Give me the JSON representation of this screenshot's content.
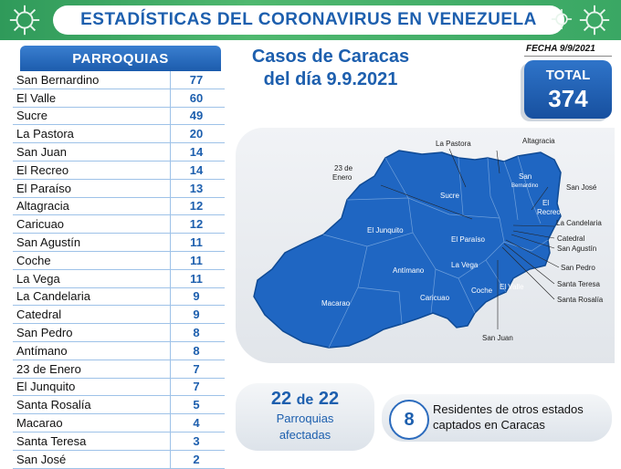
{
  "header": {
    "title": "ESTADÍSTICAS DEL CORONAVIRUS EN VENEZUELA"
  },
  "table": {
    "header": "PARROQUIAS",
    "rows": [
      {
        "name": "San Bernardino",
        "value": "77"
      },
      {
        "name": "El Valle",
        "value": "60"
      },
      {
        "name": "Sucre",
        "value": "49"
      },
      {
        "name": "La Pastora",
        "value": "20"
      },
      {
        "name": "San Juan",
        "value": "14"
      },
      {
        "name": "El Recreo",
        "value": "14"
      },
      {
        "name": "El Paraíso",
        "value": "13"
      },
      {
        "name": "Altagracia",
        "value": "12"
      },
      {
        "name": "Caricuao",
        "value": "12"
      },
      {
        "name": "San Agustín",
        "value": "11"
      },
      {
        "name": "Coche",
        "value": "11"
      },
      {
        "name": "La Vega",
        "value": "11"
      },
      {
        "name": "La Candelaria",
        "value": "9"
      },
      {
        "name": "Catedral",
        "value": "9"
      },
      {
        "name": "San Pedro",
        "value": "8"
      },
      {
        "name": "Antímano",
        "value": "8"
      },
      {
        "name": "23 de Enero",
        "value": "7"
      },
      {
        "name": "El Junquito",
        "value": "7"
      },
      {
        "name": "Santa Rosalía",
        "value": "5"
      },
      {
        "name": "Macarao",
        "value": "4"
      },
      {
        "name": "Santa Teresa",
        "value": "3"
      },
      {
        "name": "San José",
        "value": "2"
      }
    ]
  },
  "casos": {
    "line1": "Casos de Caracas",
    "line2": "del día 9.9.2021"
  },
  "fecha": "FECHA 9/9/2021",
  "total": {
    "label": "TOTAL",
    "value": "374"
  },
  "map": {
    "labels": {
      "la_pastora": "La Pastora",
      "altagracia": "Altagracia",
      "enero_1": "23 de",
      "enero_2": "Enero",
      "san": "San",
      "bernardino": "Bernardino",
      "el": "El",
      "recreo": "Recreo",
      "san_jose": "San José",
      "sucre": "Sucre",
      "el_junquito": "El Junquito",
      "la_candelaria": "La Candelaria",
      "catedral": "Catedral",
      "san_agustin": "San Agustín",
      "el_paraiso": "El Paraíso",
      "antimano": "Antímano",
      "la_vega": "La Vega",
      "san_pedro": "San Pedro",
      "santa_teresa": "Santa Teresa",
      "santa_rosalia": "Santa Rosalía",
      "macarao": "Macarao",
      "caricuao": "Caricuao",
      "coche": "Coche",
      "el_valle": "El Valle",
      "san_juan": "San Juan"
    }
  },
  "parroquias_box": {
    "count": "22",
    "of": "de",
    "total": "22",
    "line1": "Parroquias",
    "line2": "afectadas"
  },
  "residentes": {
    "count": "8",
    "text": "Residentes de otros estados captados en Caracas"
  }
}
